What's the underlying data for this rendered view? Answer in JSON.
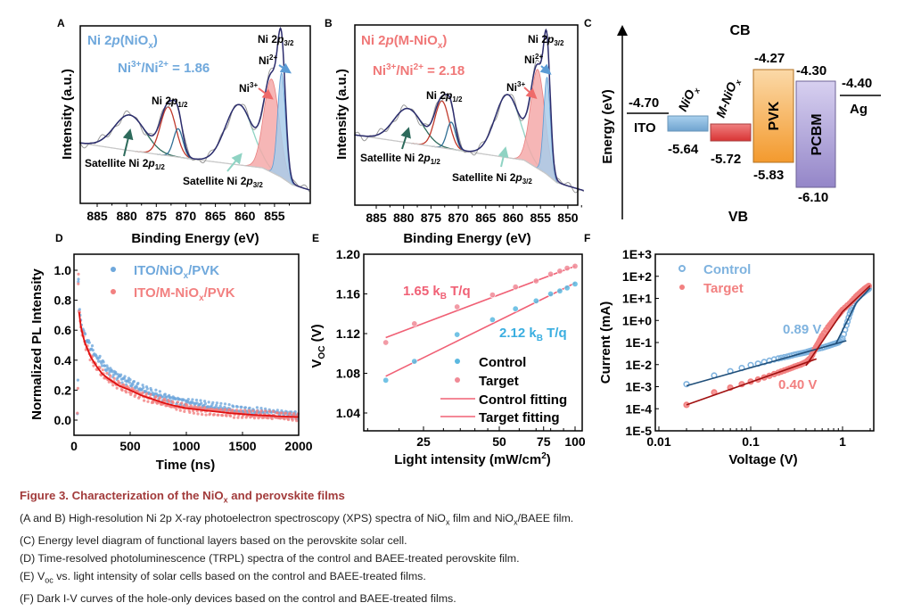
{
  "panel_letters": {
    "a": "A",
    "b": "B",
    "c": "C",
    "d": "D",
    "e": "E",
    "f": "F"
  },
  "chart_data": [
    {
      "id": "A",
      "type": "line",
      "title_parts": [
        "Ni 2",
        "p",
        "(NiO",
        "x",
        ")"
      ],
      "ratio_parts": [
        "Ni",
        "3+",
        "/Ni",
        "2+",
        " = 1.86"
      ],
      "xlabel": "Binding Energy (eV)",
      "ylabel": "Intensity (a.u.)",
      "xlim": [
        888,
        849
      ],
      "ylim": [
        0,
        200
      ],
      "xticks": [
        885,
        880,
        875,
        870,
        865,
        860,
        855
      ],
      "background": [
        [
          888,
          68
        ],
        [
          880,
          60
        ],
        [
          869,
          50
        ],
        [
          857,
          40
        ],
        [
          854,
          30
        ],
        [
          852,
          21
        ],
        [
          849,
          15
        ]
      ],
      "components": [
        {
          "name": "Satellite Ni 2p1/2",
          "center": 879.5,
          "height": 40,
          "width": 2.6,
          "color": "#2e6b5c"
        },
        {
          "name": "Ni 2p1/2 (Ni3+)",
          "center": 873.0,
          "height": 55,
          "width": 1.3,
          "color": "#c0392b"
        },
        {
          "name": "Ni 2p1/2 (Ni2+)",
          "center": 871.3,
          "height": 32,
          "width": 0.8,
          "color": "#2f6f95"
        },
        {
          "name": "Satellite Ni 2p3/2",
          "center": 861.0,
          "height": 68,
          "width": 2.3,
          "color": "#8fd3c3"
        },
        {
          "name": "Ni3+",
          "center": 855.5,
          "height": 105,
          "width": 1.3,
          "color": "#e88080",
          "fill": "#f4a9a9"
        },
        {
          "name": "Ni2+",
          "center": 853.8,
          "height": 118,
          "width": 0.65,
          "color": "#5b9bd5",
          "fill": "#a9cdea"
        }
      ],
      "annotations": {
        "p32_parts": [
          "Ni 2",
          "p",
          "3/2"
        ],
        "ni2": [
          "Ni",
          "2+"
        ],
        "ni3": [
          "Ni",
          "3+"
        ],
        "p12_parts": [
          "Ni 2",
          "p",
          "1/2"
        ],
        "sat12_parts": [
          "Satellite Ni 2",
          "p",
          "1/2"
        ],
        "sat32_parts": [
          "Satellite Ni 2",
          "p",
          "3/2"
        ]
      }
    },
    {
      "id": "B",
      "type": "line",
      "title_parts": [
        "Ni 2",
        "p",
        "(M-NiO",
        "x",
        ")"
      ],
      "ratio_parts": [
        "Ni",
        "3+",
        "/Ni",
        "2+",
        " = 2.18"
      ],
      "xlabel": "Binding Energy (eV)",
      "ylabel": "Intensity (a.u.)",
      "xlim": [
        889,
        847
      ],
      "ylim": [
        0,
        200
      ],
      "xticks": [
        885,
        880,
        875,
        870,
        865,
        860,
        855,
        850
      ],
      "background": [
        [
          889,
          78
        ],
        [
          880,
          70
        ],
        [
          869,
          60
        ],
        [
          858,
          50
        ],
        [
          854,
          35
        ],
        [
          852,
          25
        ],
        [
          847,
          16
        ]
      ],
      "components": [
        {
          "name": "Satellite Ni 2p1/2",
          "center": 879.2,
          "height": 38,
          "width": 2.6,
          "color": "#2e6b5c"
        },
        {
          "name": "Ni 2p1/2 (Ni3+)",
          "center": 873.0,
          "height": 52,
          "width": 1.3,
          "color": "#c0392b"
        },
        {
          "name": "Ni 2p1/2 (Ni2+)",
          "center": 871.3,
          "height": 30,
          "width": 0.8,
          "color": "#2f6f95"
        },
        {
          "name": "Satellite Ni 2p3/2",
          "center": 861.0,
          "height": 70,
          "width": 2.3,
          "color": "#8fd3c3"
        },
        {
          "name": "Ni3+",
          "center": 855.5,
          "height": 110,
          "width": 1.3,
          "color": "#e88080",
          "fill": "#f4a9a9"
        },
        {
          "name": "Ni2+",
          "center": 853.8,
          "height": 108,
          "width": 0.6,
          "color": "#5b9bd5",
          "fill": "#a9cdea"
        }
      ],
      "annotations": {
        "p32_parts": [
          "Ni 2",
          "p",
          "3/2"
        ],
        "ni2": [
          "Ni",
          "2+"
        ],
        "ni3": [
          "Ni",
          "3+"
        ],
        "p12_parts": [
          "Ni 2",
          "p",
          "1/2"
        ],
        "sat12_parts": [
          "Satellite Ni 2",
          "p",
          "1/2"
        ],
        "sat32_parts": [
          "Satellite Ni 2",
          "p",
          "3/2"
        ]
      }
    },
    {
      "id": "C",
      "type": "diagram",
      "ylabel": "Energy (eV)",
      "cb": "CB",
      "vb": "VB",
      "layers": [
        {
          "name": "ITO",
          "level": "-4.70"
        },
        {
          "name_parts": [
            "NiO",
            "x"
          ],
          "vb": "-5.64",
          "color": "#8fbfe0"
        },
        {
          "name_parts": [
            "M-NiO",
            "x"
          ],
          "vb": "-5.72",
          "color": "#e65a5a"
        },
        {
          "name": "PVK",
          "cb": "-4.27",
          "vb": "-5.83",
          "color": "#f7b860"
        },
        {
          "name": "PCBM",
          "cb": "-4.30",
          "vb": "-6.10",
          "color": "#b3a6dc"
        },
        {
          "name": "Ag",
          "level": "-4.40"
        }
      ]
    },
    {
      "id": "D",
      "type": "scatter",
      "xlabel": "Time (ns)",
      "ylabel": "Normalized PL Intensity",
      "xlim": [
        0,
        2000
      ],
      "ylim": [
        -0.1,
        1.1
      ],
      "xticks": [
        0,
        500,
        1000,
        1500,
        2000
      ],
      "yticks": [
        "0.0",
        "0.2",
        "0.4",
        "0.6",
        "0.8",
        "1.0"
      ],
      "series": [
        {
          "name_parts": [
            "ITO/NiO",
            "x",
            "/PVK"
          ],
          "color": "#6fa8dc",
          "points": [
            [
              30,
              0.03
            ],
            [
              35,
              0.26
            ],
            [
              38,
              0.93
            ],
            [
              40,
              0.95
            ],
            [
              45,
              0.74
            ],
            [
              60,
              0.66
            ],
            [
              80,
              0.6
            ],
            [
              100,
              0.56
            ],
            [
              150,
              0.48
            ],
            [
              200,
              0.43
            ],
            [
              250,
              0.38
            ],
            [
              300,
              0.34
            ],
            [
              400,
              0.29
            ],
            [
              500,
              0.25
            ],
            [
              600,
              0.21
            ],
            [
              700,
              0.18
            ],
            [
              800,
              0.155
            ],
            [
              900,
              0.135
            ],
            [
              1000,
              0.12
            ],
            [
              1200,
              0.095
            ],
            [
              1400,
              0.072
            ],
            [
              1600,
              0.058
            ],
            [
              1800,
              0.045
            ],
            [
              2000,
              0.035
            ]
          ]
        },
        {
          "name_parts": [
            "ITO/M-NiO",
            "x",
            "/PVK"
          ],
          "color": "#f28080",
          "points": [
            [
              30,
              0.02
            ],
            [
              35,
              0.22
            ],
            [
              38,
              0.9
            ],
            [
              40,
              1.0
            ],
            [
              45,
              0.72
            ],
            [
              60,
              0.63
            ],
            [
              80,
              0.56
            ],
            [
              100,
              0.51
            ],
            [
              150,
              0.42
            ],
            [
              200,
              0.36
            ],
            [
              250,
              0.31
            ],
            [
              300,
              0.28
            ],
            [
              400,
              0.23
            ],
            [
              500,
              0.2
            ],
            [
              600,
              0.165
            ],
            [
              700,
              0.14
            ],
            [
              800,
              0.115
            ],
            [
              900,
              0.095
            ],
            [
              1000,
              0.08
            ],
            [
              1200,
              0.062
            ],
            [
              1400,
              0.046
            ],
            [
              1600,
              0.035
            ],
            [
              1800,
              0.027
            ],
            [
              2000,
              0.02
            ]
          ]
        }
      ],
      "fit_color": "#e01010"
    },
    {
      "id": "E",
      "type": "scatter",
      "xlabel_parts": [
        "Light intensity (mW/cm",
        "2",
        ")"
      ],
      "ylabel_parts": [
        "V",
        "OC",
        " (V)"
      ],
      "xscale": "log",
      "xlim": [
        14,
        105
      ],
      "ylim": [
        1.01,
        1.2
      ],
      "xticks": [
        25,
        50,
        75,
        100
      ],
      "yticks": [
        "1.04",
        "1.08",
        "1.12",
        "1.16",
        "1.20"
      ],
      "series": [
        {
          "name": "Control",
          "color": "#5bb8e0",
          "points": [
            [
              17.7,
              1.073
            ],
            [
              23,
              1.092
            ],
            [
              34,
              1.119
            ],
            [
              47,
              1.134
            ],
            [
              58,
              1.145
            ],
            [
              70,
              1.153
            ],
            [
              80,
              1.16
            ],
            [
              87,
              1.163
            ],
            [
              93,
              1.166
            ],
            [
              100,
              1.17
            ]
          ],
          "fit": [
            [
              17.7,
              1.077
            ],
            [
              100,
              1.171
            ]
          ],
          "fit_label": "Control fitting"
        },
        {
          "name": "Target",
          "color": "#f08a96",
          "points": [
            [
              17.7,
              1.111
            ],
            [
              23,
              1.13
            ],
            [
              34,
              1.147
            ],
            [
              47,
              1.159
            ],
            [
              58,
              1.167
            ],
            [
              70,
              1.173
            ],
            [
              80,
              1.18
            ],
            [
              87,
              1.183
            ],
            [
              93,
              1.186
            ],
            [
              100,
              1.188
            ]
          ],
          "fit": [
            [
              17.7,
              1.116
            ],
            [
              100,
              1.188
            ]
          ],
          "fit_label": "Target fitting"
        }
      ],
      "fit_color": "#f06075",
      "annotations": {
        "target_slope": [
          "1.65 k",
          "B",
          " T/q"
        ],
        "control_slope": [
          "2.12 k",
          "B",
          " T/q"
        ]
      }
    },
    {
      "id": "F",
      "type": "scatter",
      "xlabel": "Voltage (V)",
      "ylabel": "Current (mA)",
      "xscale": "log",
      "yscale": "log",
      "xlim": [
        0.01,
        2
      ],
      "ylim": [
        1e-05,
        1000.0
      ],
      "xticks": [
        "0.01",
        "0.1",
        "1"
      ],
      "yticks": [
        "1E+3",
        "1E+2",
        "1E+1",
        "1E+0",
        "1E-1",
        "1E-2",
        "1E-3",
        "1E-4",
        "1E-5"
      ],
      "series": [
        {
          "name": "Control",
          "color": "#7fb3df",
          "fit_color": "#1f4e79",
          "points": [
            [
              0.02,
              0.0013
            ],
            [
              0.04,
              0.0032
            ],
            [
              0.06,
              0.005
            ],
            [
              0.08,
              0.007
            ],
            [
              0.1,
              0.0095
            ],
            [
              0.12,
              0.011
            ],
            [
              0.14,
              0.013
            ],
            [
              0.16,
              0.015
            ],
            [
              0.18,
              0.017
            ],
            [
              0.2,
              0.019
            ],
            [
              0.25,
              0.023
            ],
            [
              0.3,
              0.028
            ],
            [
              0.35,
              0.032
            ],
            [
              0.4,
              0.036
            ],
            [
              0.45,
              0.042
            ],
            [
              0.5,
              0.048
            ],
            [
              0.6,
              0.058
            ],
            [
              0.7,
              0.07
            ],
            [
              0.8,
              0.085
            ],
            [
              0.9,
              0.1
            ],
            [
              1.0,
              0.15
            ],
            [
              1.1,
              0.6
            ],
            [
              1.2,
              2
            ],
            [
              1.3,
              5
            ],
            [
              1.4,
              9
            ],
            [
              1.6,
              15
            ],
            [
              1.8,
              22
            ],
            [
              2.0,
              30
            ]
          ],
          "fits": [
            [
              [
                0.02,
                0.0011
              ],
              [
                1.1,
                0.12
              ]
            ],
            [
              [
                0.85,
                0.09
              ],
              [
                1.4,
                6
              ]
            ],
            [
              [
                1.4,
                6
              ],
              [
                2.0,
                30
              ]
            ]
          ],
          "threshold": "0.89 V"
        },
        {
          "name": "Target",
          "color": "#f28080",
          "fit_color": "#a01010",
          "points": [
            [
              0.02,
              0.00015
            ],
            [
              0.04,
              0.00055
            ],
            [
              0.06,
              0.0009
            ],
            [
              0.08,
              0.0013
            ],
            [
              0.1,
              0.0017
            ],
            [
              0.12,
              0.0021
            ],
            [
              0.14,
              0.0026
            ],
            [
              0.16,
              0.0031
            ],
            [
              0.18,
              0.0037
            ],
            [
              0.2,
              0.0043
            ],
            [
              0.25,
              0.006
            ],
            [
              0.3,
              0.008
            ],
            [
              0.35,
              0.01
            ],
            [
              0.4,
              0.013
            ],
            [
              0.45,
              0.02
            ],
            [
              0.5,
              0.05
            ],
            [
              0.55,
              0.1
            ],
            [
              0.6,
              0.2
            ],
            [
              0.7,
              0.5
            ],
            [
              0.8,
              1
            ],
            [
              0.9,
              1.8
            ],
            [
              1.0,
              3
            ],
            [
              1.2,
              6
            ],
            [
              1.4,
              12
            ],
            [
              1.6,
              20
            ],
            [
              1.8,
              30
            ],
            [
              2.0,
              40
            ]
          ],
          "fits": [
            [
              [
                0.02,
                0.00015
              ],
              [
                0.52,
                0.018
              ]
            ],
            [
              [
                0.4,
                0.009
              ],
              [
                1.0,
                2.5
              ]
            ],
            [
              [
                1.0,
                2.5
              ],
              [
                2.0,
                38
              ]
            ]
          ],
          "threshold": "0.40 V"
        }
      ]
    }
  ],
  "caption": {
    "title_parts": [
      "Figure 3.  Characterization of the NiO",
      "x",
      " and perovskite films"
    ],
    "line_ab_parts": [
      "(A and B) High-resolution Ni 2p X-ray photoelectron spectroscopy (XPS) spectra of NiO",
      "x",
      " film and NiO",
      "x",
      "/BAEE film."
    ],
    "line_c": "(C) Energy level diagram of functional layers based on the perovskite solar cell.",
    "line_d": "(D) Time-resolved photoluminescence (TRPL) spectra of the control and BAEE-treated perovskite film.",
    "line_e_parts": [
      "(E) V",
      "oc",
      " vs. light intensity of solar cells based on the control and BAEE-treated films."
    ],
    "line_f": "(F) Dark I-V curves of the hole-only devices based on the control and BAEE-treated films."
  }
}
